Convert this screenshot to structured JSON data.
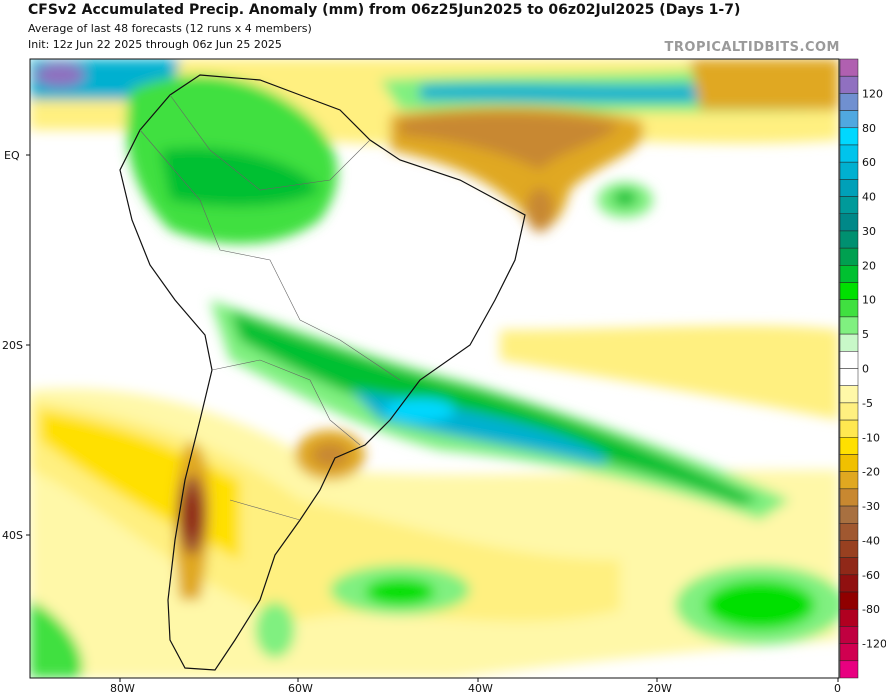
{
  "title": "CFSv2 Accumulated Precip. Anomaly (mm) from 06z25Jun2025 to 06z02Jul2025 (Days 1-7)",
  "subtitle": "Average of last 48 forecasts (12 runs x 4 members)",
  "init": "Init: 12z Jun 22 2025 through 06z Jun 25 2025",
  "watermark": "TROPICALTIDBITS.COM",
  "lat_labels": [
    "EQ",
    "20S",
    "40S"
  ],
  "lon_labels": [
    "80W",
    "60W",
    "40W",
    "20W",
    "0"
  ],
  "colorbar": {
    "labels": [
      "120",
      "80",
      "60",
      "40",
      "30",
      "20",
      "10",
      "5",
      "0",
      "-5",
      "-10",
      "-20",
      "-30",
      "-40",
      "-60",
      "-80",
      "-120"
    ],
    "colors": [
      "#b060b0",
      "#9070c0",
      "#7090d0",
      "#50a8e0",
      "#00d8ff",
      "#00c4ec",
      "#00b0d0",
      "#00a0b8",
      "#009a9a",
      "#008888",
      "#009070",
      "#00a050",
      "#00c030",
      "#00e000",
      "#40e040",
      "#80f080",
      "#c8f8c8",
      "#ffffff",
      "#ffffff",
      "#fff8a8",
      "#fff080",
      "#ffe850",
      "#ffe000",
      "#f0c000",
      "#e0a820",
      "#c88830",
      "#a87040",
      "#a05830",
      "#984020",
      "#902818",
      "#901010",
      "#900000",
      "#b00020",
      "#c00040",
      "#d00050",
      "#e80080"
    ]
  }
}
